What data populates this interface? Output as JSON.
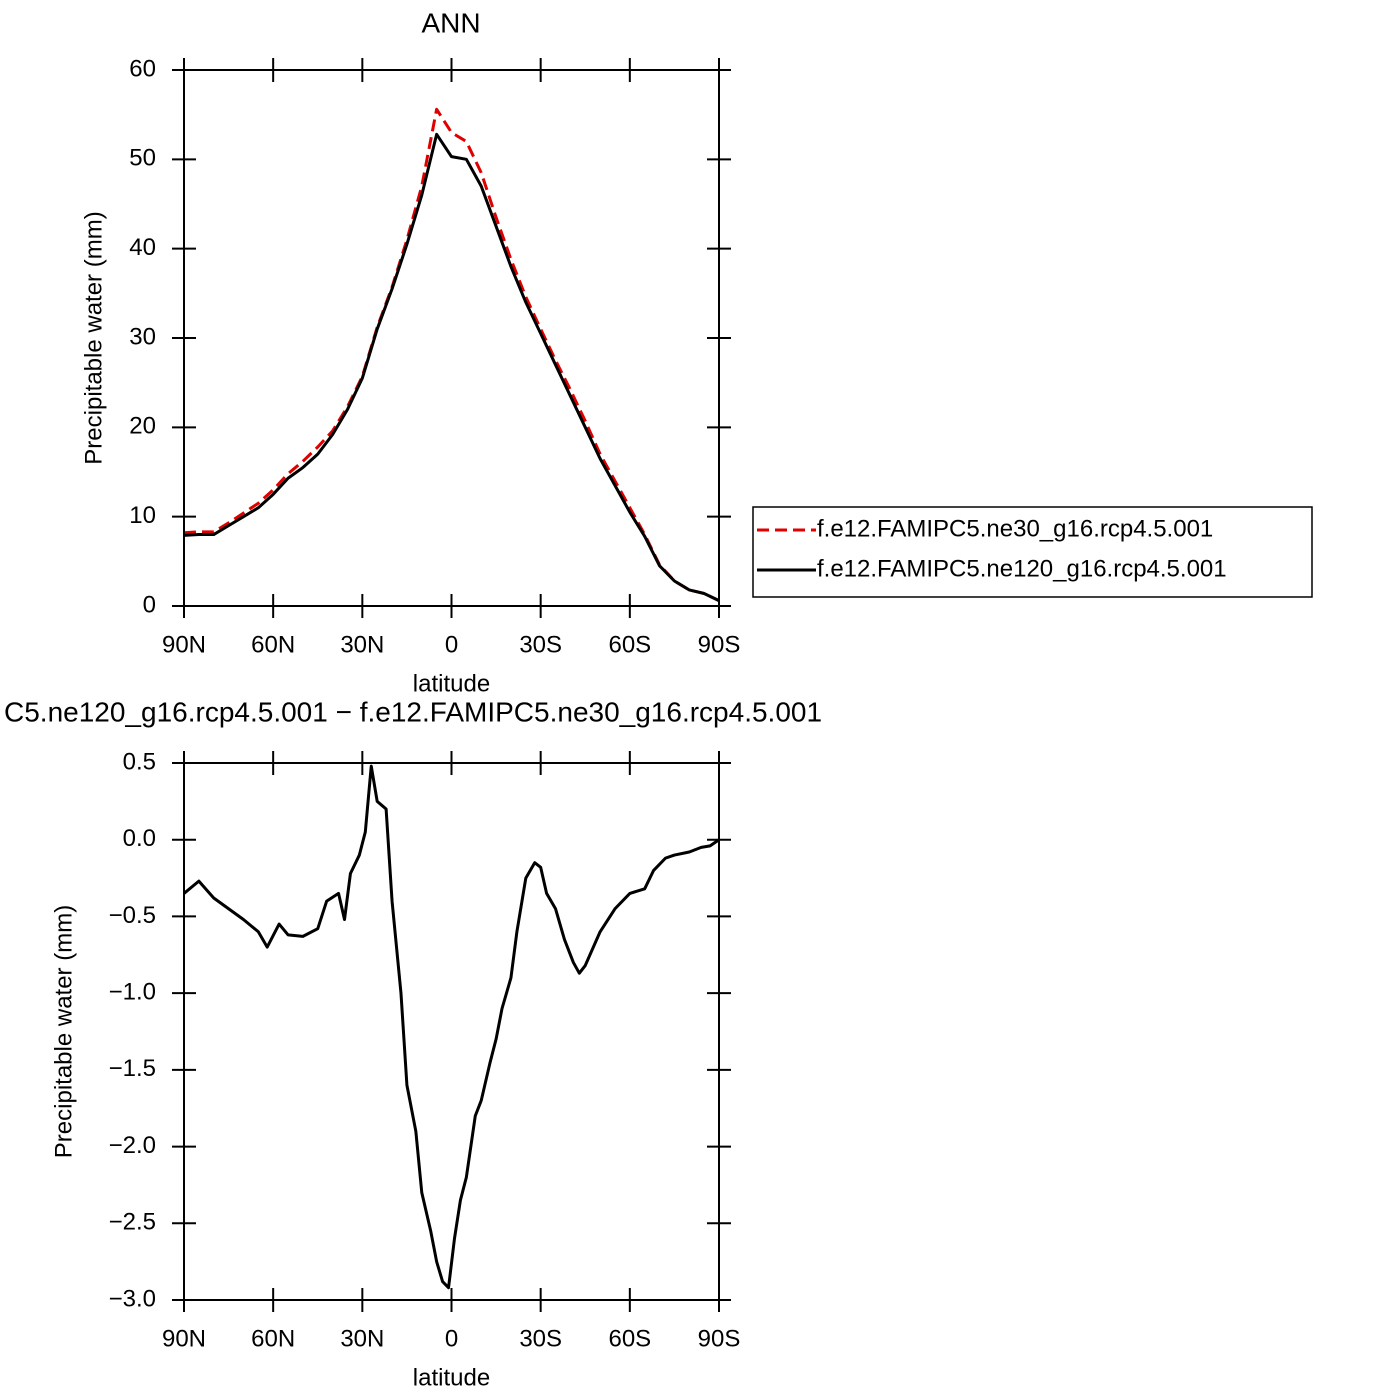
{
  "chart_data": [
    {
      "type": "line",
      "title": "ANN",
      "xlabel": "latitude",
      "ylabel": "Precipitable water (mm)",
      "x": [
        90,
        85,
        80,
        75,
        70,
        65,
        60,
        55,
        50,
        45,
        40,
        35,
        30,
        25,
        20,
        15,
        10,
        5,
        0,
        -5,
        -10,
        -15,
        -20,
        -25,
        -30,
        -35,
        -40,
        -45,
        -50,
        -55,
        -60,
        -65,
        -70,
        -75,
        -80,
        -85,
        -90
      ],
      "series": [
        {
          "name": "f.e12.FAMIPC5.ne30_g16.rcp4.5.001",
          "color": "#e00000",
          "dash": "dashed",
          "values": [
            8.2,
            8.3,
            8.3,
            9.3,
            10.4,
            11.5,
            13.0,
            14.8,
            16.2,
            17.8,
            19.6,
            22.3,
            25.7,
            31.2,
            35.7,
            41.0,
            47.0,
            55.6,
            53.0,
            52.0,
            48.5,
            43.5,
            38.8,
            34.6,
            31.0,
            27.5,
            24.2,
            20.7,
            17.0,
            14.0,
            11.0,
            8.0,
            4.6,
            2.8,
            1.8,
            1.4,
            0.6
          ]
        },
        {
          "name": "f.e12.FAMIPC5.ne120_g16.rcp4.5.001",
          "color": "#000000",
          "dash": "solid",
          "values": [
            7.9,
            8.0,
            8.0,
            9.0,
            10.0,
            11.0,
            12.5,
            14.3,
            15.5,
            17.0,
            19.2,
            22.0,
            25.5,
            31.0,
            35.5,
            40.5,
            46.0,
            52.8,
            50.3,
            50.0,
            47.0,
            42.5,
            38.0,
            34.0,
            30.5,
            27.0,
            23.5,
            20.0,
            16.5,
            13.5,
            10.5,
            7.8,
            4.5,
            2.8,
            1.8,
            1.4,
            0.6
          ]
        }
      ],
      "xlim": [
        90,
        -90
      ],
      "xticks": [
        {
          "value": 90,
          "label": "90N"
        },
        {
          "value": 60,
          "label": "60N"
        },
        {
          "value": 30,
          "label": "30N"
        },
        0,
        {
          "value": -30,
          "label": "30S"
        },
        {
          "value": -60,
          "label": "60S"
        },
        {
          "value": -90,
          "label": "90S"
        }
      ],
      "ylim": [
        0,
        60
      ],
      "yticks": [
        0,
        10,
        20,
        30,
        40,
        50,
        60
      ],
      "legend": "right"
    },
    {
      "type": "line",
      "title": "C5.ne120_g16.rcp4.5.001 − f.e12.FAMIPC5.ne30_g16.rcp4.5.001",
      "xlabel": "latitude",
      "ylabel": "Precipitable water (mm)",
      "x": [
        90,
        85,
        80,
        75,
        70,
        65,
        62,
        58,
        55,
        50,
        45,
        42,
        38,
        36,
        34,
        31,
        29,
        27,
        25,
        22,
        20,
        17,
        15,
        12,
        10,
        7,
        5,
        3,
        1,
        -1,
        -3,
        -5,
        -8,
        -10,
        -13,
        -15,
        -17,
        -20,
        -22,
        -25,
        -28,
        -30,
        -32,
        -35,
        -38,
        -41,
        -43,
        -45,
        -50,
        -55,
        -60,
        -65,
        -68,
        -72,
        -75,
        -80,
        -84,
        -87,
        -90
      ],
      "series": [
        {
          "color": "#000000",
          "dash": "solid",
          "values": [
            -0.35,
            -0.27,
            -0.38,
            -0.45,
            -0.52,
            -0.6,
            -0.7,
            -0.55,
            -0.62,
            -0.63,
            -0.58,
            -0.4,
            -0.35,
            -0.52,
            -0.22,
            -0.1,
            0.05,
            0.48,
            0.25,
            0.2,
            -0.4,
            -1.0,
            -1.6,
            -1.9,
            -2.3,
            -2.55,
            -2.75,
            -2.88,
            -2.92,
            -2.6,
            -2.35,
            -2.2,
            -1.8,
            -1.7,
            -1.45,
            -1.3,
            -1.1,
            -0.9,
            -0.6,
            -0.25,
            -0.15,
            -0.18,
            -0.35,
            -0.45,
            -0.65,
            -0.8,
            -0.87,
            -0.82,
            -0.6,
            -0.45,
            -0.35,
            -0.32,
            -0.2,
            -0.12,
            -0.1,
            -0.08,
            -0.05,
            -0.04,
            0.0
          ]
        }
      ],
      "xlim": [
        90,
        -90
      ],
      "xticks": [
        {
          "value": 90,
          "label": "90N"
        },
        {
          "value": 60,
          "label": "60N"
        },
        {
          "value": 30,
          "label": "30N"
        },
        0,
        {
          "value": -30,
          "label": "30S"
        },
        {
          "value": -60,
          "label": "60S"
        },
        {
          "value": -90,
          "label": "90S"
        }
      ],
      "ylim": [
        -3.0,
        0.5
      ],
      "yticks": [
        {
          "value": -3.0,
          "label": "−3.0"
        },
        {
          "value": -2.5,
          "label": "−2.5"
        },
        {
          "value": -2.0,
          "label": "−2.0"
        },
        {
          "value": -1.5,
          "label": "−1.5"
        },
        {
          "value": -1.0,
          "label": "−1.0"
        },
        {
          "value": -0.5,
          "label": "−0.5"
        },
        {
          "value": 0,
          "label": "0.0"
        },
        0.5
      ]
    }
  ]
}
